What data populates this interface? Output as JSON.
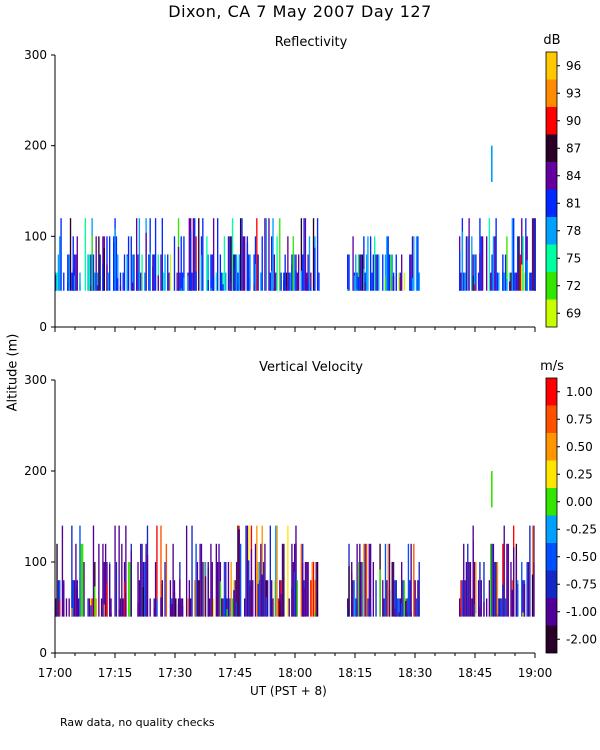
{
  "title": "Dixon, CA  7 May 2007  Day 127",
  "ylabel": "Altitude (m)",
  "xlabel": "UT  (PST + 8)",
  "footnote": "Raw data, no quality checks",
  "chart_data": [
    {
      "type": "heatmap",
      "title": "Reflectivity",
      "colorbar_label": "dB",
      "colorbar_ticks": [
        "96",
        "93",
        "90",
        "87",
        "84",
        "81",
        "78",
        "75",
        "72",
        "69"
      ],
      "colorbar_colors": [
        "#ffc800",
        "#ff8c00",
        "#ff0000",
        "#2a0028",
        "#6400a0",
        "#0028ff",
        "#00a0ff",
        "#00ffa0",
        "#32e600",
        "#c8ff00"
      ],
      "xlim": [
        0,
        120
      ],
      "ylim": [
        0,
        300
      ],
      "x_ticks": [
        "17:00",
        "17:15",
        "17:30",
        "17:45",
        "18:00",
        "18:15",
        "18:30",
        "18:45",
        "19:00"
      ],
      "y_ticks": [
        "0",
        "100",
        "200",
        "300"
      ],
      "segments": [
        {
          "start": 0,
          "end": 66,
          "top": 120
        },
        {
          "start": 73,
          "end": 91,
          "top": 100
        },
        {
          "start": 101,
          "end": 120,
          "top": 120
        }
      ],
      "isolated": [
        {
          "x": 109,
          "bottom": 160,
          "top": 200
        }
      ]
    },
    {
      "type": "heatmap",
      "title": "Vertical Velocity",
      "colorbar_label": "m/s",
      "colorbar_ticks": [
        "1.00",
        "0.75",
        "0.50",
        "0.25",
        "0.00",
        "-0.25",
        "-0.50",
        "-0.75",
        "-1.00",
        "-2.00"
      ],
      "colorbar_colors": [
        "#ff0000",
        "#ff5000",
        "#ff9600",
        "#ffe600",
        "#32e600",
        "#00a0ff",
        "#0050ff",
        "#1428c8",
        "#500096",
        "#280028"
      ],
      "xlim": [
        0,
        120
      ],
      "ylim": [
        0,
        300
      ],
      "x_ticks": [
        "17:00",
        "17:15",
        "17:30",
        "17:45",
        "18:00",
        "18:15",
        "18:30",
        "18:45",
        "19:00"
      ],
      "y_ticks": [
        "0",
        "100",
        "200",
        "300"
      ],
      "segments": [
        {
          "start": 0,
          "end": 66,
          "top": 140
        },
        {
          "start": 73,
          "end": 91,
          "top": 120
        },
        {
          "start": 101,
          "end": 120,
          "top": 140
        }
      ],
      "isolated": [
        {
          "x": 109,
          "bottom": 160,
          "top": 200
        }
      ]
    }
  ]
}
